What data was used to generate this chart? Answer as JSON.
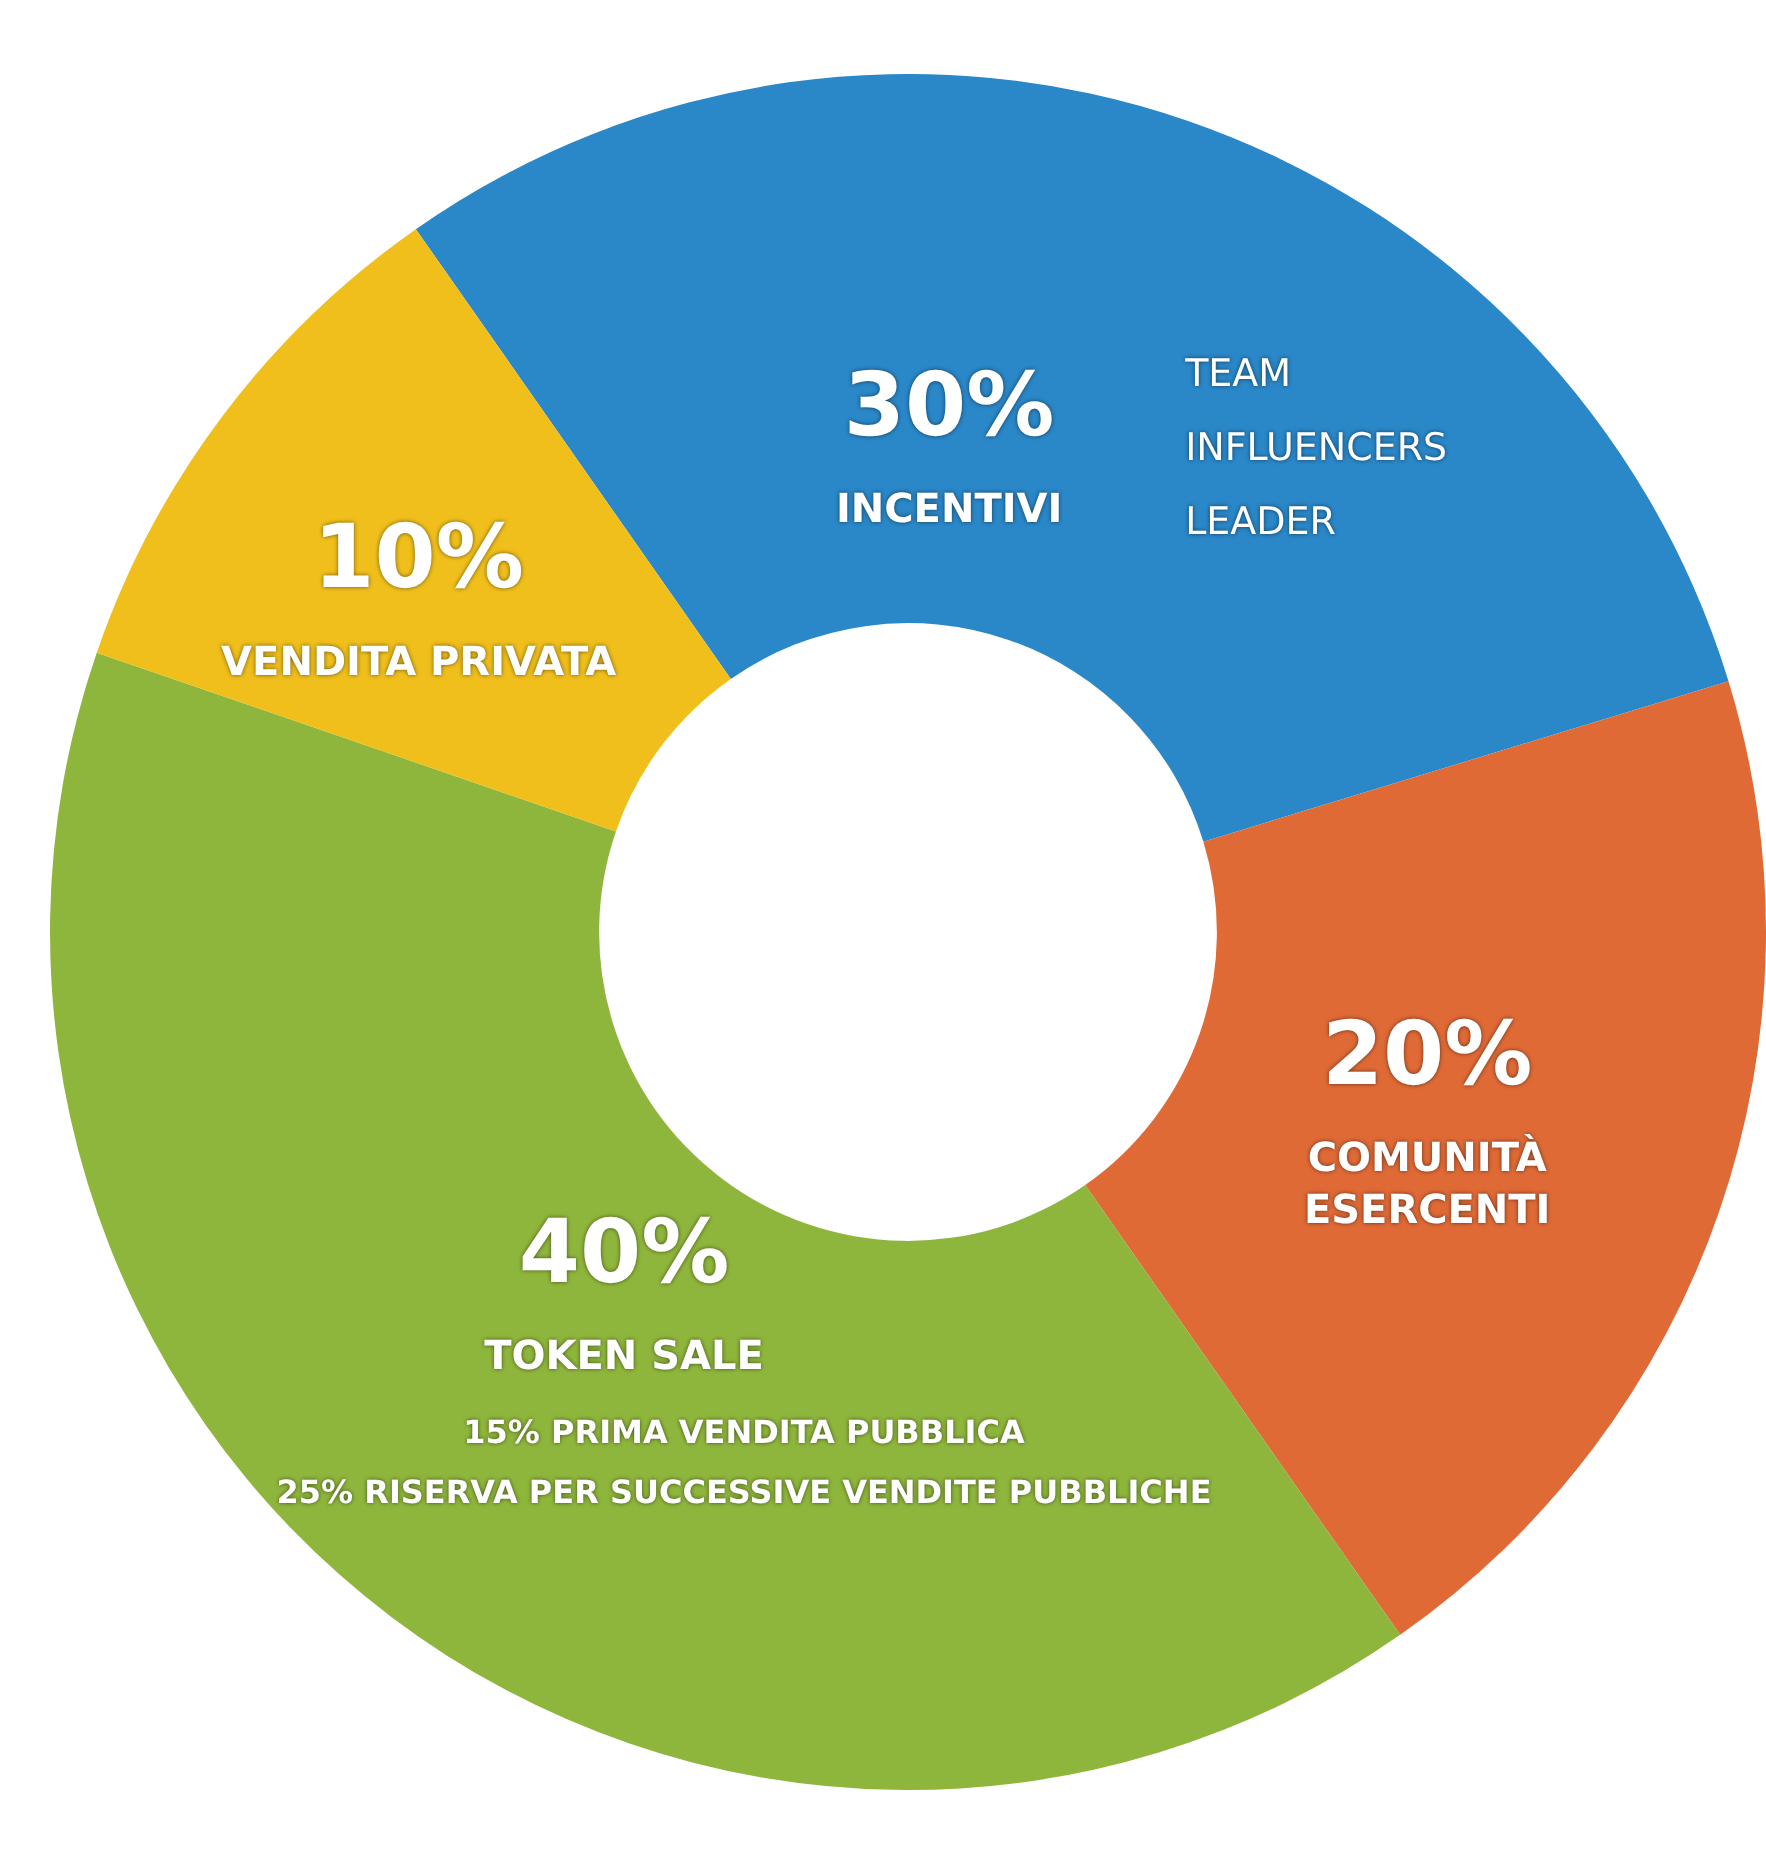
{
  "chart_data": {
    "type": "donut",
    "categories": [
      "INCENTIVI",
      "COMUNITÀ\nESERCENTI",
      "TOKEN SALE",
      "VENDITA PRIVATA"
    ],
    "values": [
      30,
      20,
      40,
      10
    ],
    "value_labels": [
      "30%",
      "20%",
      "40%",
      "10%"
    ],
    "colors": [
      "#2a87c8",
      "#e06a36",
      "#8fb63c",
      "#f0bf1c"
    ],
    "annotations": [
      "TEAM",
      "INFLUENCERS",
      "LEADER",
      "15% PRIMA VENDITA PUBBLICA",
      "25% RISERVA PER SUCCESSIVE VENDITE PUBBLICHE"
    ],
    "legend": false
  }
}
